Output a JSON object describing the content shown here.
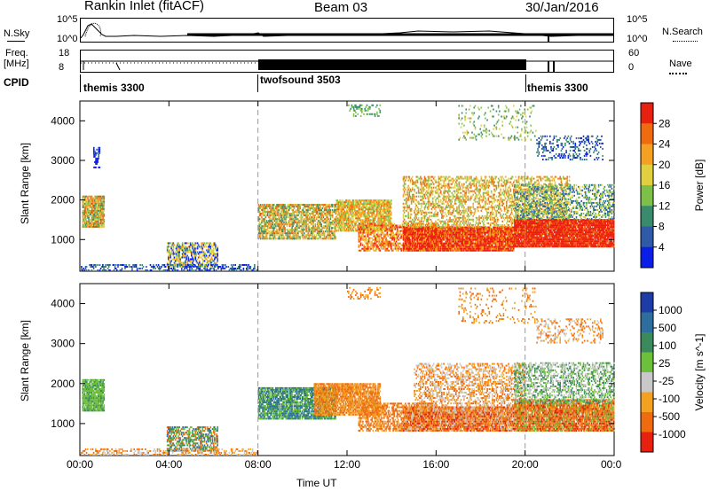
{
  "header": {
    "title": "Rankin Inlet (fitACF)",
    "beam": "Beam 03",
    "date": "30/Jan/2016"
  },
  "top_panels": {
    "nsky_label": "N.Sky",
    "nsearch_label": "N.Search",
    "nsky_ticks": [
      "10^5",
      "10^0"
    ],
    "nsearch_ticks": [
      "10^5",
      "10^0"
    ],
    "freq_label": "Freq.",
    "freq_unit": "[MHz]",
    "freq_ticks": [
      "18",
      "8"
    ],
    "nave_label": "Nave",
    "nave_ticks": [
      "60",
      "0"
    ],
    "cpid_label": "CPID",
    "cpid_segments": [
      "themis 3300",
      "twofsound 3503",
      "themis 3300"
    ]
  },
  "chart_data": [
    {
      "type": "heatmap",
      "title": "",
      "ylabel": "Slant Range [km]",
      "xlabel": "",
      "x_ticks": [
        "00:00",
        "04:00",
        "08:00",
        "12:00",
        "16:00",
        "20:00",
        "00:00"
      ],
      "y_ticks": [
        "1000",
        "2000",
        "3000",
        "4000"
      ],
      "ylim": [
        200,
        4500
      ],
      "colorbar": {
        "label": "Power [dB]",
        "ticks": [
          "4",
          "8",
          "12",
          "16",
          "20",
          "24",
          "28"
        ],
        "colors": [
          "#0a1ee8",
          "#2e5aa8",
          "#3a8a6e",
          "#7cc04a",
          "#e0d040",
          "#f4a020",
          "#f06a10",
          "#e82010"
        ]
      }
    },
    {
      "type": "heatmap",
      "title": "",
      "ylabel": "Slant Range [km]",
      "xlabel": "Time UT",
      "x_ticks": [
        "00:00",
        "04:00",
        "08:00",
        "12:00",
        "16:00",
        "20:00",
        "00:00"
      ],
      "y_ticks": [
        "1000",
        "2000",
        "3000",
        "4000"
      ],
      "ylim": [
        200,
        4500
      ],
      "colorbar": {
        "label": "Velocity [m s^-1]",
        "ticks": [
          "1000",
          "500",
          "100",
          "25",
          "-25",
          "-100",
          "-500",
          "-1000"
        ],
        "colors": [
          "#1e3ca8",
          "#2e6e9e",
          "#3a8a5e",
          "#6cc03a",
          "#c8c8c8",
          "#f4a020",
          "#f06a10",
          "#e82010"
        ]
      }
    }
  ]
}
